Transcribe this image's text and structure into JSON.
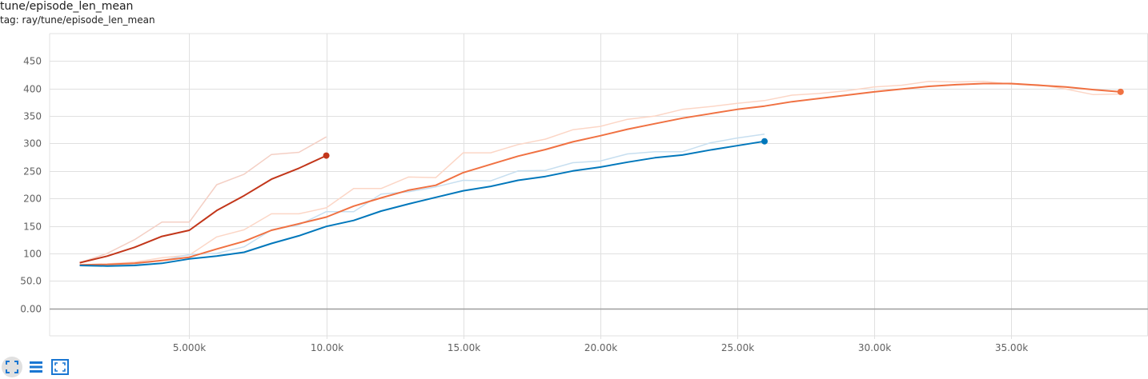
{
  "header": {
    "title": "tune/episode_len_mean",
    "tag": "tag: ray/tune/episode_len_mean"
  },
  "toolbar": {
    "buttons": [
      {
        "icon": "fit-domain-icon",
        "active": true
      },
      {
        "icon": "data-table-icon",
        "active": false
      },
      {
        "icon": "fullscreen-icon",
        "active": false
      }
    ]
  },
  "colors": {
    "grid": "#e0e0e0",
    "zero_line": "#9e9e9e",
    "tick_text": "#616161",
    "icon": "#1976d2"
  },
  "chart_data": {
    "type": "line",
    "x_tick_labels": [
      "5.000k",
      "10.00k",
      "15.00k",
      "20.00k",
      "25.00k",
      "30.00k",
      "35.00k"
    ],
    "x_ticks": [
      5000,
      10000,
      15000,
      20000,
      25000,
      30000,
      35000
    ],
    "y_tick_labels": [
      "0.00",
      "50.0",
      "100",
      "150",
      "200",
      "250",
      "300",
      "350",
      "400",
      "450"
    ],
    "y_ticks": [
      0,
      50,
      100,
      150,
      200,
      250,
      300,
      350,
      400,
      450
    ],
    "xlim": [
      -100,
      40000
    ],
    "ylim": [
      -50,
      500
    ],
    "grid": true,
    "series": [
      {
        "color": "#c2361a",
        "raw_color": "#f4cfc4",
        "x": [
          1000,
          2000,
          3000,
          4000,
          5000,
          6000,
          7000,
          8000,
          9000,
          10000
        ],
        "smoothed": [
          83,
          95,
          111,
          131,
          142,
          178,
          205,
          235,
          255,
          278
        ],
        "raw": [
          83,
          100,
          125,
          157,
          157,
          225,
          244,
          280,
          284,
          312
        ]
      },
      {
        "color": "#f07142",
        "raw_color": "#fcd6c6",
        "x": [
          1000,
          2000,
          3000,
          4000,
          5000,
          6000,
          7000,
          8000,
          9000,
          10000,
          11000,
          12000,
          13000,
          14000,
          15000,
          16000,
          17000,
          18000,
          19000,
          20000,
          21000,
          22000,
          23000,
          24000,
          25000,
          26000,
          27000,
          28000,
          29000,
          30000,
          31000,
          32000,
          33000,
          34000,
          35000,
          36000,
          37000,
          38000,
          39000
        ],
        "smoothed": [
          79,
          80,
          82,
          87,
          93,
          108,
          122,
          142,
          154,
          166,
          186,
          201,
          215,
          224,
          247,
          262,
          277,
          289,
          303,
          314,
          326,
          336,
          346,
          354,
          362,
          368,
          376,
          382,
          388,
          394,
          399,
          404,
          407,
          409,
          409,
          406,
          403,
          398,
          394
        ],
        "raw": [
          79,
          81,
          84,
          92,
          97,
          130,
          143,
          172,
          172,
          183,
          218,
          218,
          239,
          238,
          283,
          283,
          298,
          308,
          325,
          331,
          344,
          350,
          362,
          367,
          373,
          378,
          388,
          391,
          396,
          403,
          406,
          413,
          412,
          413,
          408,
          407,
          399,
          389,
          390
        ]
      },
      {
        "color": "#0077bb",
        "raw_color": "#c7dff0",
        "x": [
          1000,
          2000,
          3000,
          4000,
          5000,
          6000,
          7000,
          8000,
          9000,
          10000,
          11000,
          12000,
          13000,
          14000,
          15000,
          16000,
          17000,
          18000,
          19000,
          20000,
          21000,
          22000,
          23000,
          24000,
          25000,
          26000
        ],
        "smoothed": [
          78,
          77,
          78,
          82,
          90,
          95,
          102,
          118,
          132,
          149,
          160,
          177,
          190,
          202,
          214,
          222,
          233,
          240,
          250,
          257,
          266,
          274,
          279,
          288,
          296,
          304
        ],
        "raw": [
          78,
          77,
          80,
          87,
          98,
          100,
          112,
          143,
          152,
          176,
          176,
          208,
          212,
          221,
          233,
          232,
          250,
          251,
          265,
          268,
          281,
          285,
          285,
          301,
          310,
          317
        ]
      }
    ]
  }
}
